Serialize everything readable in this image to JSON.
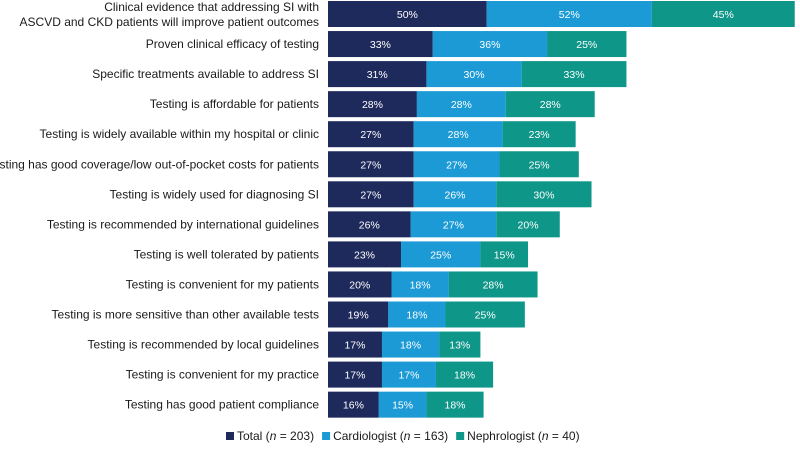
{
  "chart_data": {
    "type": "bar",
    "orientation": "horizontal",
    "stacking": "stacked",
    "categories": [
      [
        "Clinical evidence that addressing SI with",
        "ASCVD and CKD patients will improve patient outcomes"
      ],
      [
        "Proven clinical efficacy of testing"
      ],
      [
        "Specific treatments available to address SI"
      ],
      [
        "Testing is affordable for patients"
      ],
      [
        "Testing is widely available within my hospital or clinic"
      ],
      [
        "Testing has good coverage/low out-of-pocket costs for patients"
      ],
      [
        "Testing is widely used for diagnosing SI"
      ],
      [
        "Testing is recommended by international guidelines"
      ],
      [
        "Testing is well tolerated by patients"
      ],
      [
        "Testing is convenient for my patients"
      ],
      [
        "Testing is more sensitive than other available tests"
      ],
      [
        "Testing is recommended by local guidelines"
      ],
      [
        "Testing is convenient for my practice"
      ],
      [
        "Testing has good patient compliance"
      ]
    ],
    "series": [
      {
        "name": "Total",
        "legend": {
          "prefix": "Total (",
          "n_label": "n",
          "suffix": " = 203)"
        },
        "color": "#1f2a5c",
        "values": [
          50,
          33,
          31,
          28,
          27,
          27,
          27,
          26,
          23,
          20,
          19,
          17,
          17,
          16
        ]
      },
      {
        "name": "Cardiologist",
        "legend": {
          "prefix": "Cardiologist (",
          "n_label": "n",
          "suffix": " = 163)"
        },
        "color": "#1b9ad6",
        "values": [
          52,
          36,
          30,
          28,
          28,
          27,
          26,
          27,
          25,
          18,
          18,
          18,
          17,
          15
        ]
      },
      {
        "name": "Nephrologist",
        "legend": {
          "prefix": "Nephrologist (",
          "n_label": "n",
          "suffix": " = 40)"
        },
        "color": "#0e9688",
        "values": [
          45,
          25,
          33,
          28,
          23,
          25,
          30,
          20,
          15,
          28,
          25,
          13,
          18,
          18
        ]
      }
    ],
    "value_suffix": "%",
    "legend_position": "bottom",
    "grid": false
  }
}
